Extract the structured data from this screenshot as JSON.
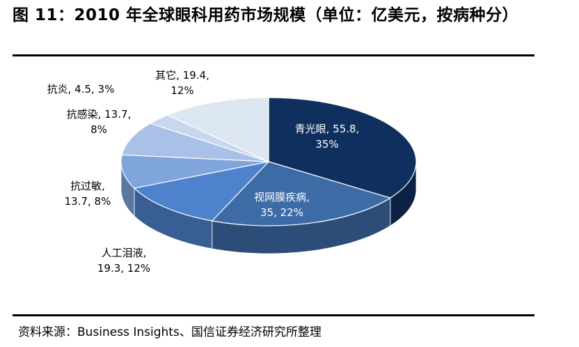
{
  "title": "图 11：2010 年全球眼科用药市场规模（单位：亿美元，按病种分）",
  "source": "资料来源：Business Insights、国信证券经济研究所整理",
  "chart_data": {
    "type": "pie",
    "title": "",
    "categories": [
      "青光眼",
      "视网膜疾病",
      "人工泪液",
      "抗过敏",
      "抗感染",
      "抗炎",
      "其它"
    ],
    "values": [
      55.8,
      35,
      19.3,
      13.7,
      13.7,
      4.5,
      19.4
    ],
    "percents": [
      "35%",
      "22%",
      "12%",
      "8%",
      "8%",
      "3%",
      "12%"
    ],
    "colors": [
      "#0f2f5e",
      "#3d6ba6",
      "#4e82cc",
      "#7fa5dc",
      "#a9c1e6",
      "#c9d7ec",
      "#dde7f2"
    ],
    "labels": [
      {
        "line1": "青光眼, 55.8,",
        "line2": "35%"
      },
      {
        "line1": "视网膜疾病,",
        "line2": "35, 22%"
      },
      {
        "line1": "人工泪液,",
        "line2": "19.3, 12%"
      },
      {
        "line1": "抗过敏,",
        "line2": "13.7, 8%"
      },
      {
        "line1": "抗感染, 13.7,",
        "line2": "8%"
      },
      {
        "line1": "抗炎, 4.5, 3%",
        "line2": ""
      },
      {
        "line1": "其它, 19.4,",
        "line2": "12%"
      }
    ],
    "style": "3d"
  }
}
